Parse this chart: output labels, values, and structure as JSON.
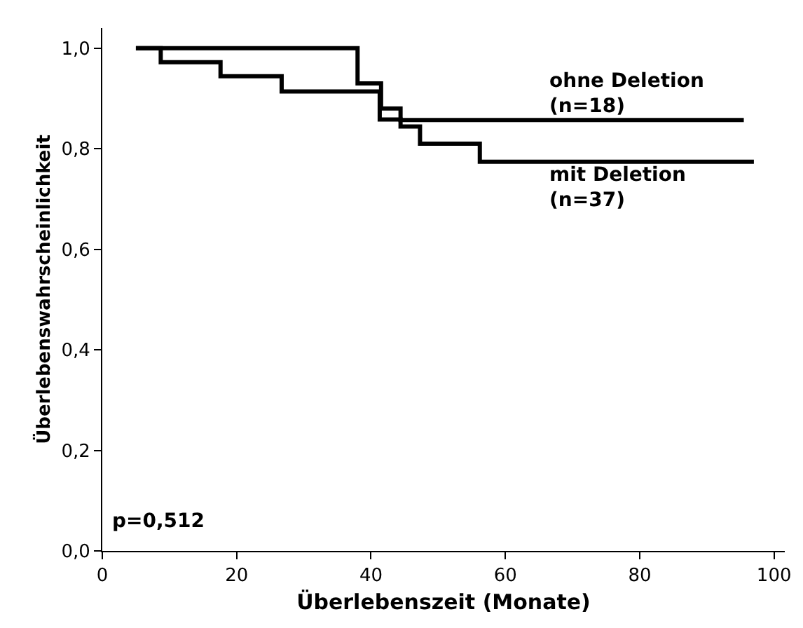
{
  "chart_data": {
    "type": "step",
    "xlabel": "Überlebenszeit (Monate)",
    "ylabel": "Überlebenswahrscheinlichkeit",
    "xlim": [
      0,
      101.6
    ],
    "ylim": [
      0,
      1.04
    ],
    "xticks": [
      0,
      20,
      40,
      60,
      80,
      100
    ],
    "yticks": [
      {
        "value": 0,
        "label": "0,0"
      },
      {
        "value": 0.2,
        "label": "0,2"
      },
      {
        "value": 0.4,
        "label": "0,4"
      },
      {
        "value": 0.6,
        "label": "0,6"
      },
      {
        "value": 0.8,
        "label": "0,8"
      },
      {
        "value": 1.0,
        "label": "1,0"
      }
    ],
    "legend": false,
    "line_style": "solid",
    "series": [
      {
        "name": "ohne Deletion\n(n=18)",
        "color": "#000000",
        "x": [
          5,
          38,
          41.5,
          44.4,
          95.5
        ],
        "values": [
          1.0,
          0.93,
          0.88,
          0.857,
          0.857
        ]
      },
      {
        "name": "mit Deletion\n(n=37)",
        "color": "#000000",
        "x": [
          5,
          8.7,
          17.6,
          26.7,
          41.3,
          44.4,
          47.3,
          56.2,
          97
        ],
        "values": [
          1.0,
          0.972,
          0.944,
          0.914,
          0.858,
          0.844,
          0.81,
          0.774,
          0.774
        ]
      }
    ],
    "annotations": [
      "p=0,512"
    ]
  }
}
